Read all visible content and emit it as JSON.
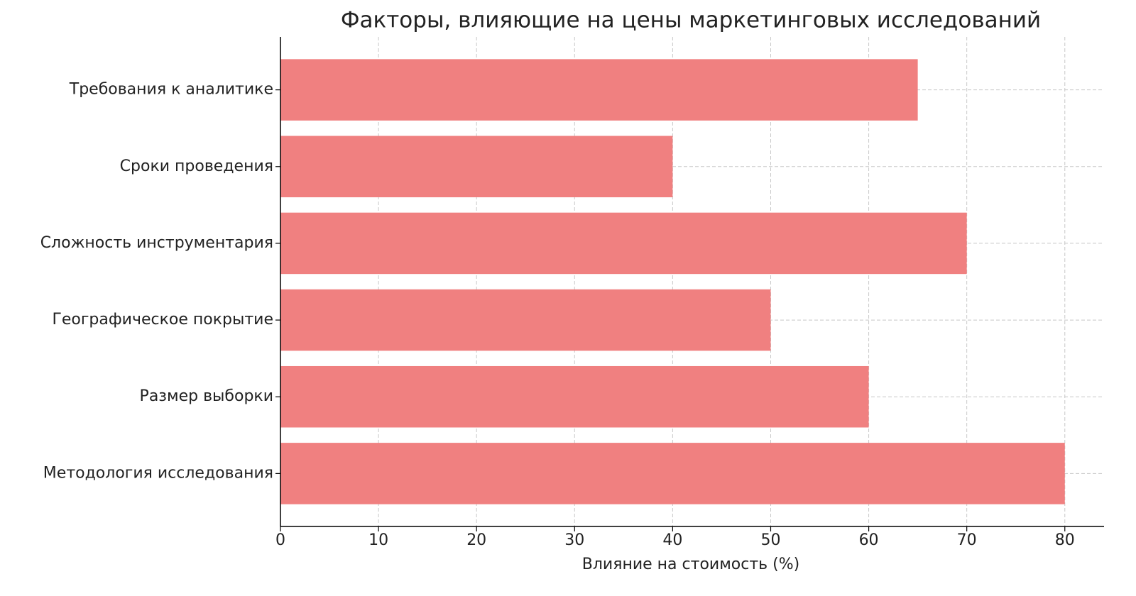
{
  "chart_data": {
    "type": "barh",
    "title": "Факторы, влияющие на цены маркетинговых исследований",
    "x_label": "Влияние на стоимость (%)",
    "categories": [
      "Требования к аналитике",
      "Сроки проведения",
      "Сложность инструментария",
      "Географическое покрытие",
      "Размер выборки",
      "Методология исследования"
    ],
    "values": [
      65,
      40,
      70,
      50,
      60,
      80
    ],
    "color": "#f08080",
    "xlim": [
      0,
      84
    ],
    "xticks": [
      0,
      10,
      20,
      30,
      40,
      50,
      60,
      70,
      80
    ],
    "grid": true
  }
}
